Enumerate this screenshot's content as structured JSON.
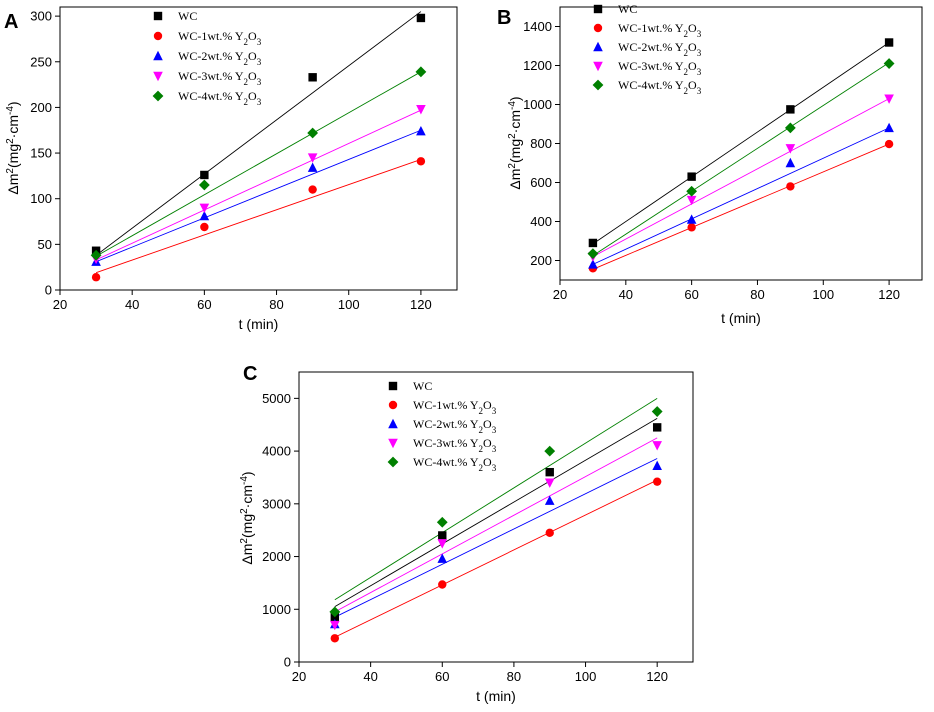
{
  "chart_data": [
    {
      "panel_label": "A",
      "type": "scatter",
      "xlabel": "t (min)",
      "ylabel": "Δm²(mg²·cm⁻⁴)",
      "xlim": [
        20,
        130
      ],
      "ylim": [
        0,
        310
      ],
      "xticks": [
        20,
        40,
        60,
        80,
        100,
        120
      ],
      "yticks": [
        0,
        50,
        100,
        150,
        200,
        250,
        300
      ],
      "legend_position": "top-left",
      "series": [
        {
          "name": "WC",
          "marker": "square",
          "color": "#000000",
          "x": [
            30,
            60,
            90,
            120
          ],
          "values": [
            43,
            126,
            233,
            298
          ],
          "fit": [
            [
              30,
              38
            ],
            [
              120,
              305
            ]
          ]
        },
        {
          "name": "WC-1wt.% Y₂O₃",
          "marker": "circle",
          "color": "#ff0000",
          "x": [
            30,
            60,
            90,
            120
          ],
          "values": [
            14,
            69,
            110,
            141
          ],
          "fit": [
            [
              30,
              19
            ],
            [
              120,
              143
            ]
          ]
        },
        {
          "name": "WC-2wt.% Y₂O₃",
          "marker": "triangle-up",
          "color": "#0000ff",
          "x": [
            30,
            60,
            90,
            120
          ],
          "values": [
            31,
            81,
            134,
            174
          ],
          "fit": [
            [
              30,
              31
            ],
            [
              120,
              175
            ]
          ]
        },
        {
          "name": "WC-3wt.% Y₂O₃",
          "marker": "triangle-down",
          "color": "#ff00ff",
          "x": [
            30,
            60,
            90,
            120
          ],
          "values": [
            34,
            90,
            145,
            198
          ],
          "fit": [
            [
              30,
              33
            ],
            [
              120,
              197
            ]
          ]
        },
        {
          "name": "WC-4wt.% Y₂O₃",
          "marker": "diamond",
          "color": "#008000",
          "x": [
            30,
            60,
            90,
            120
          ],
          "values": [
            38,
            115,
            172,
            239
          ],
          "fit": [
            [
              30,
              37
            ],
            [
              120,
              239
            ]
          ]
        }
      ]
    },
    {
      "panel_label": "B",
      "type": "scatter",
      "xlabel": "t (min)",
      "ylabel": "Δm²(mg²·cm⁻⁴)",
      "xlim": [
        20,
        130
      ],
      "ylim": [
        100,
        1500
      ],
      "xticks": [
        20,
        40,
        60,
        80,
        100,
        120
      ],
      "yticks": [
        200,
        400,
        600,
        800,
        1000,
        1200,
        1400
      ],
      "legend_position": "top-left",
      "series": [
        {
          "name": "WC",
          "marker": "square",
          "color": "#000000",
          "x": [
            30,
            60,
            90,
            120
          ],
          "values": [
            290,
            630,
            975,
            1318
          ],
          "fit": [
            [
              30,
              285
            ],
            [
              120,
              1318
            ]
          ]
        },
        {
          "name": "WC-1wt.% Y₂O₃",
          "marker": "circle",
          "color": "#ff0000",
          "x": [
            30,
            60,
            90,
            120
          ],
          "values": [
            160,
            370,
            580,
            797
          ],
          "fit": [
            [
              30,
              155
            ],
            [
              120,
              797
            ]
          ]
        },
        {
          "name": "WC-2wt.% Y₂O₃",
          "marker": "triangle-up",
          "color": "#0000ff",
          "x": [
            30,
            60,
            90,
            120
          ],
          "values": [
            180,
            410,
            700,
            880
          ],
          "fit": [
            [
              30,
              180
            ],
            [
              120,
              880
            ]
          ]
        },
        {
          "name": "WC-3wt.% Y₂O₃",
          "marker": "triangle-down",
          "color": "#ff00ff",
          "x": [
            30,
            60,
            90,
            120
          ],
          "values": [
            220,
            510,
            775,
            1030
          ],
          "fit": [
            [
              30,
              220
            ],
            [
              120,
              1030
            ]
          ]
        },
        {
          "name": "WC-4wt.% Y₂O₃",
          "marker": "diamond",
          "color": "#008000",
          "x": [
            30,
            60,
            90,
            120
          ],
          "values": [
            235,
            555,
            880,
            1210
          ],
          "fit": [
            [
              30,
              225
            ],
            [
              120,
              1215
            ]
          ]
        }
      ]
    },
    {
      "panel_label": "C",
      "type": "scatter",
      "xlabel": "t (min)",
      "ylabel": "Δm²(mg²·cm⁻⁴)",
      "xlim": [
        20,
        130
      ],
      "ylim": [
        0,
        5500
      ],
      "xticks": [
        20,
        40,
        60,
        80,
        100,
        120
      ],
      "yticks": [
        0,
        1000,
        2000,
        3000,
        4000,
        5000
      ],
      "legend_position": "top-left",
      "series": [
        {
          "name": "WC",
          "marker": "square",
          "color": "#000000",
          "x": [
            30,
            60,
            90,
            120
          ],
          "values": [
            850,
            2400,
            3600,
            4450
          ],
          "fit": [
            [
              30,
              1050
            ],
            [
              120,
              4620
            ]
          ]
        },
        {
          "name": "WC-1wt.% Y₂O₃",
          "marker": "circle",
          "color": "#ff0000",
          "x": [
            30,
            60,
            90,
            120
          ],
          "values": [
            450,
            1470,
            2450,
            3420
          ],
          "fit": [
            [
              30,
              470
            ],
            [
              120,
              3450
            ]
          ]
        },
        {
          "name": "WC-2wt.% Y₂O₃",
          "marker": "triangle-up",
          "color": "#0000ff",
          "x": [
            30,
            60,
            90,
            120
          ],
          "values": [
            720,
            1960,
            3060,
            3720
          ],
          "fit": [
            [
              30,
              850
            ],
            [
              120,
              3860
            ]
          ]
        },
        {
          "name": "WC-3wt.% Y₂O₃",
          "marker": "triangle-down",
          "color": "#ff00ff",
          "x": [
            30,
            60,
            90,
            120
          ],
          "values": [
            700,
            2250,
            3400,
            4110
          ],
          "fit": [
            [
              30,
              950
            ],
            [
              120,
              4250
            ]
          ]
        },
        {
          "name": "WC-4wt.% Y₂O₃",
          "marker": "diamond",
          "color": "#008000",
          "x": [
            30,
            60,
            90,
            120
          ],
          "values": [
            950,
            2650,
            4000,
            4750
          ],
          "fit": [
            [
              30,
              1180
            ],
            [
              120,
              5000
            ]
          ]
        }
      ]
    }
  ]
}
